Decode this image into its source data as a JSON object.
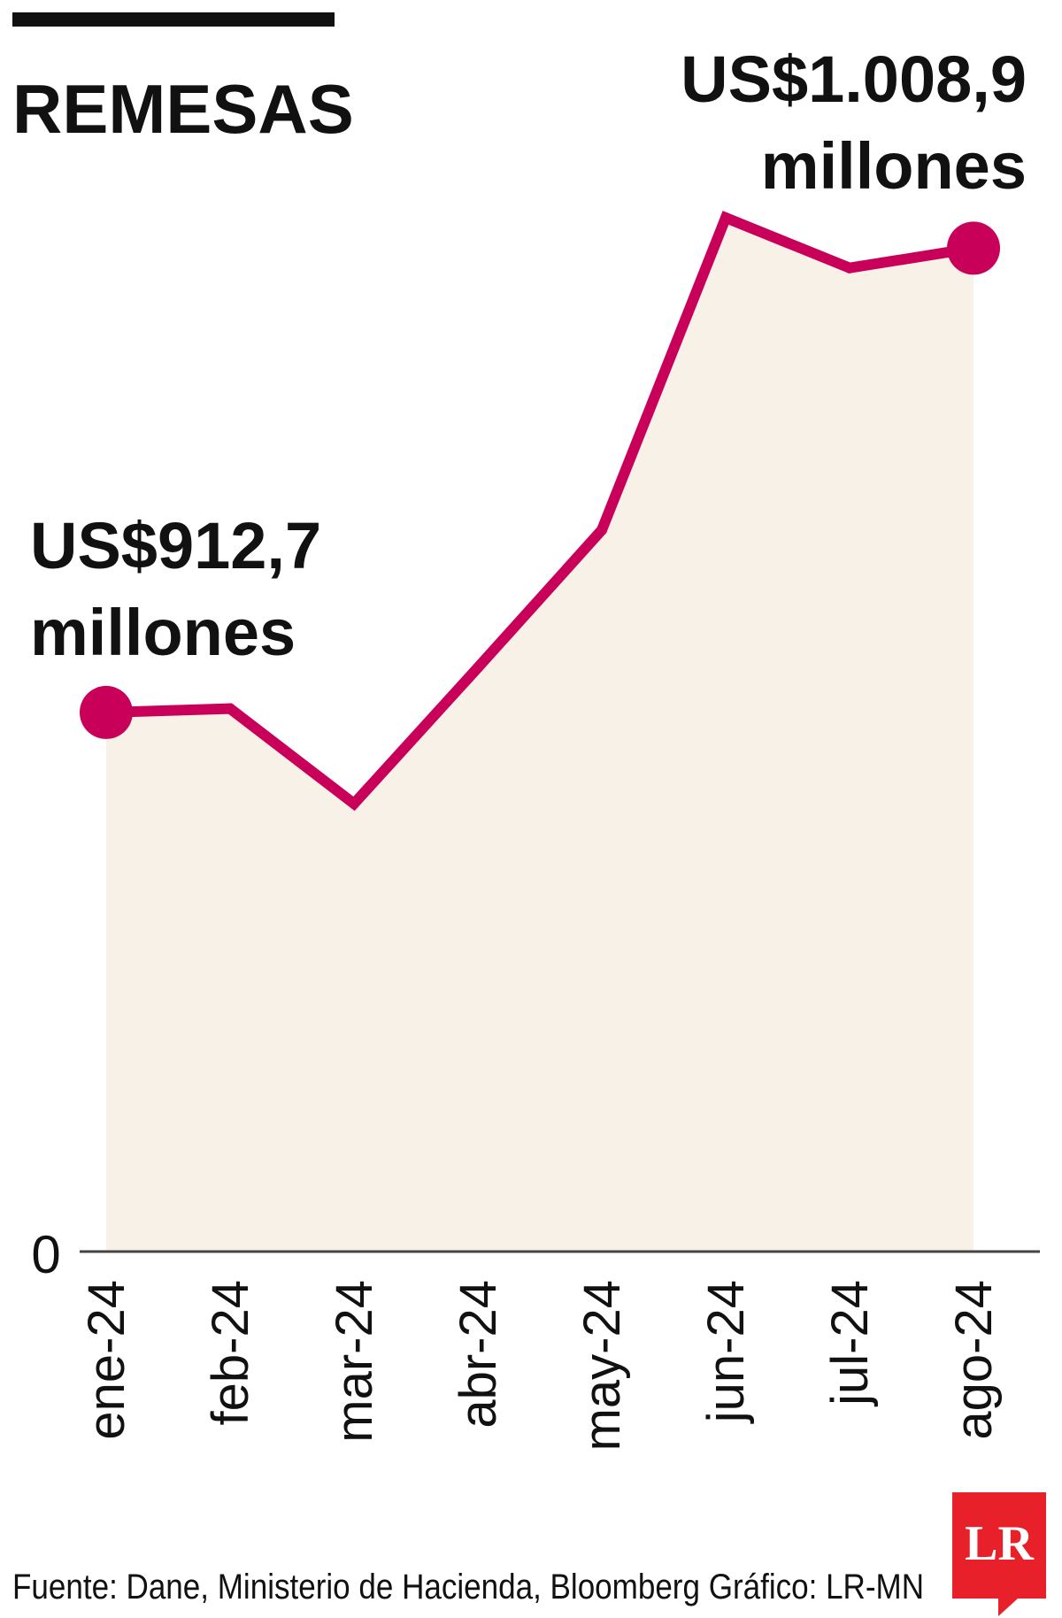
{
  "chart_data": {
    "type": "area",
    "title": "REMESAS",
    "categories": [
      "ene-24",
      "feb-24",
      "mar-24",
      "abr-24",
      "may-24",
      "jun-24",
      "jul-24",
      "ago-24"
    ],
    "series": [
      {
        "values": [
          912.7,
          913.5,
          893.8,
          922.0,
          950.5,
          1015.2,
          1004.8,
          1008.9
        ]
      }
    ],
    "ylim": [
      0,
      1160
    ],
    "y_ticks": [
      "0"
    ],
    "annotations": [
      {
        "category": "ene-24",
        "line1": "US$912,7",
        "line2": "millones"
      },
      {
        "category": "ago-24",
        "line1": "US$1.008,9",
        "line2": "millones"
      }
    ],
    "source": "Fuente: Dane, Ministerio de Hacienda, Bloomberg  Gráfico: LR-MN",
    "logo": "LR",
    "colors": {
      "line": "#c8005a",
      "fill": "#f8f1e8",
      "text": "#111111",
      "logo": "#e8202a"
    }
  }
}
